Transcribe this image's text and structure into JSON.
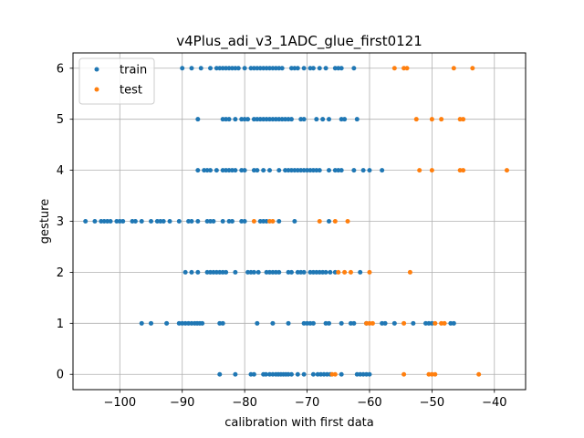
{
  "chart_data": {
    "type": "scatter",
    "title": "v4Plus_adi_v3_1ADC_glue_first0121",
    "xlabel": "calibration with first data",
    "ylabel": "gesture",
    "xlim": [
      -107.5,
      -35.0
    ],
    "ylim": [
      -0.3,
      6.3
    ],
    "xticks": [
      -100,
      -90,
      -80,
      -70,
      -60,
      -50,
      -40
    ],
    "xtick_labels": [
      "−100",
      "−90",
      "−80",
      "−70",
      "−60",
      "−50",
      "−40"
    ],
    "yticks": [
      0,
      1,
      2,
      3,
      4,
      5,
      6
    ],
    "ytick_labels": [
      "0",
      "1",
      "2",
      "3",
      "4",
      "5",
      "6"
    ],
    "grid": true,
    "legend_position": "top-left",
    "series": [
      {
        "name": "train",
        "color": "#1f77b4",
        "points": [
          [
            -84,
            0
          ],
          [
            -81.5,
            0
          ],
          [
            -79,
            0
          ],
          [
            -78.5,
            0
          ],
          [
            -77,
            0
          ],
          [
            -76.6,
            0
          ],
          [
            -76,
            0
          ],
          [
            -75.5,
            0
          ],
          [
            -75,
            0
          ],
          [
            -74.6,
            0
          ],
          [
            -74.2,
            0
          ],
          [
            -73.8,
            0
          ],
          [
            -73.4,
            0
          ],
          [
            -73,
            0
          ],
          [
            -72.5,
            0
          ],
          [
            -71.5,
            0
          ],
          [
            -70.5,
            0
          ],
          [
            -69,
            0
          ],
          [
            -68.3,
            0
          ],
          [
            -67.8,
            0
          ],
          [
            -67.3,
            0
          ],
          [
            -66.8,
            0
          ],
          [
            -66.3,
            0
          ],
          [
            -64.5,
            0
          ],
          [
            -62,
            0
          ],
          [
            -61.5,
            0
          ],
          [
            -61,
            0
          ],
          [
            -60.5,
            0
          ],
          [
            -60,
            0
          ],
          [
            -96.5,
            1
          ],
          [
            -95,
            1
          ],
          [
            -92.5,
            1
          ],
          [
            -90.5,
            1
          ],
          [
            -90,
            1
          ],
          [
            -89.5,
            1
          ],
          [
            -89,
            1
          ],
          [
            -88.5,
            1
          ],
          [
            -88,
            1
          ],
          [
            -87.6,
            1
          ],
          [
            -87.2,
            1
          ],
          [
            -86.8,
            1
          ],
          [
            -84,
            1
          ],
          [
            -83.5,
            1
          ],
          [
            -78,
            1
          ],
          [
            -75.5,
            1
          ],
          [
            -73,
            1
          ],
          [
            -70.5,
            1
          ],
          [
            -70,
            1
          ],
          [
            -69.5,
            1
          ],
          [
            -69,
            1
          ],
          [
            -67,
            1
          ],
          [
            -66.5,
            1
          ],
          [
            -64.5,
            1
          ],
          [
            -63,
            1
          ],
          [
            -62.5,
            1
          ],
          [
            -60.5,
            1
          ],
          [
            -58,
            1
          ],
          [
            -57.5,
            1
          ],
          [
            -56,
            1
          ],
          [
            -53,
            1
          ],
          [
            -51,
            1
          ],
          [
            -50.5,
            1
          ],
          [
            -50,
            1
          ],
          [
            -47,
            1
          ],
          [
            -46.5,
            1
          ],
          [
            -89.5,
            2
          ],
          [
            -88.5,
            2
          ],
          [
            -87.5,
            2
          ],
          [
            -86,
            2
          ],
          [
            -85.5,
            2
          ],
          [
            -85,
            2
          ],
          [
            -84.5,
            2
          ],
          [
            -84,
            2
          ],
          [
            -83.5,
            2
          ],
          [
            -83,
            2
          ],
          [
            -81.5,
            2
          ],
          [
            -79.5,
            2
          ],
          [
            -79,
            2
          ],
          [
            -78.5,
            2
          ],
          [
            -77.8,
            2
          ],
          [
            -76.5,
            2
          ],
          [
            -76,
            2
          ],
          [
            -75.5,
            2
          ],
          [
            -75,
            2
          ],
          [
            -74.5,
            2
          ],
          [
            -73,
            2
          ],
          [
            -72.5,
            2
          ],
          [
            -71.5,
            2
          ],
          [
            -71,
            2
          ],
          [
            -70.5,
            2
          ],
          [
            -69.5,
            2
          ],
          [
            -69,
            2
          ],
          [
            -68.5,
            2
          ],
          [
            -68,
            2
          ],
          [
            -67.5,
            2
          ],
          [
            -67,
            2
          ],
          [
            -66.3,
            2
          ],
          [
            -65.5,
            2
          ],
          [
            -61.5,
            2
          ],
          [
            -105.5,
            3
          ],
          [
            -104,
            3
          ],
          [
            -103,
            3
          ],
          [
            -102.5,
            3
          ],
          [
            -102,
            3
          ],
          [
            -101.5,
            3
          ],
          [
            -100.5,
            3
          ],
          [
            -100,
            3
          ],
          [
            -99.5,
            3
          ],
          [
            -98,
            3
          ],
          [
            -97.5,
            3
          ],
          [
            -96.5,
            3
          ],
          [
            -95,
            3
          ],
          [
            -94,
            3
          ],
          [
            -93.5,
            3
          ],
          [
            -93,
            3
          ],
          [
            -92,
            3
          ],
          [
            -90.5,
            3
          ],
          [
            -89,
            3
          ],
          [
            -88.5,
            3
          ],
          [
            -87.5,
            3
          ],
          [
            -86,
            3
          ],
          [
            -85.5,
            3
          ],
          [
            -85,
            3
          ],
          [
            -83.5,
            3
          ],
          [
            -82.5,
            3
          ],
          [
            -82,
            3
          ],
          [
            -80.5,
            3
          ],
          [
            -80,
            3
          ],
          [
            -77.5,
            3
          ],
          [
            -77,
            3
          ],
          [
            -76.5,
            3
          ],
          [
            -74.5,
            3
          ],
          [
            -72,
            3
          ],
          [
            -66.5,
            3
          ],
          [
            -87.5,
            4
          ],
          [
            -86.5,
            4
          ],
          [
            -86,
            4
          ],
          [
            -85.5,
            4
          ],
          [
            -84.5,
            4
          ],
          [
            -83.5,
            4
          ],
          [
            -83,
            4
          ],
          [
            -82.5,
            4
          ],
          [
            -82,
            4
          ],
          [
            -81.5,
            4
          ],
          [
            -80.5,
            4
          ],
          [
            -80,
            4
          ],
          [
            -78.5,
            4
          ],
          [
            -78,
            4
          ],
          [
            -77,
            4
          ],
          [
            -76,
            4
          ],
          [
            -74.5,
            4
          ],
          [
            -73.5,
            4
          ],
          [
            -73,
            4
          ],
          [
            -72.5,
            4
          ],
          [
            -72,
            4
          ],
          [
            -71.5,
            4
          ],
          [
            -71,
            4
          ],
          [
            -70.5,
            4
          ],
          [
            -70,
            4
          ],
          [
            -69.5,
            4
          ],
          [
            -69,
            4
          ],
          [
            -68.5,
            4
          ],
          [
            -68,
            4
          ],
          [
            -66.5,
            4
          ],
          [
            -65.5,
            4
          ],
          [
            -65,
            4
          ],
          [
            -64.5,
            4
          ],
          [
            -62.5,
            4
          ],
          [
            -61,
            4
          ],
          [
            -60,
            4
          ],
          [
            -58,
            4
          ],
          [
            -87.5,
            5
          ],
          [
            -83.5,
            5
          ],
          [
            -83,
            5
          ],
          [
            -82.5,
            5
          ],
          [
            -81.5,
            5
          ],
          [
            -80.5,
            5
          ],
          [
            -80,
            5
          ],
          [
            -79.5,
            5
          ],
          [
            -78.5,
            5
          ],
          [
            -78,
            5
          ],
          [
            -77.5,
            5
          ],
          [
            -77,
            5
          ],
          [
            -76.5,
            5
          ],
          [
            -76,
            5
          ],
          [
            -75.5,
            5
          ],
          [
            -75,
            5
          ],
          [
            -74.5,
            5
          ],
          [
            -74,
            5
          ],
          [
            -73.5,
            5
          ],
          [
            -73,
            5
          ],
          [
            -72.5,
            5
          ],
          [
            -71,
            5
          ],
          [
            -70.5,
            5
          ],
          [
            -68.5,
            5
          ],
          [
            -67.5,
            5
          ],
          [
            -66.5,
            5
          ],
          [
            -64.5,
            5
          ],
          [
            -64,
            5
          ],
          [
            -62,
            5
          ],
          [
            -90,
            6
          ],
          [
            -88.5,
            6
          ],
          [
            -87,
            6
          ],
          [
            -85.5,
            6
          ],
          [
            -84.5,
            6
          ],
          [
            -84,
            6
          ],
          [
            -83.5,
            6
          ],
          [
            -83,
            6
          ],
          [
            -82.5,
            6
          ],
          [
            -82,
            6
          ],
          [
            -81.5,
            6
          ],
          [
            -81,
            6
          ],
          [
            -80,
            6
          ],
          [
            -79,
            6
          ],
          [
            -78.5,
            6
          ],
          [
            -78,
            6
          ],
          [
            -77.5,
            6
          ],
          [
            -77,
            6
          ],
          [
            -76.5,
            6
          ],
          [
            -76,
            6
          ],
          [
            -75.5,
            6
          ],
          [
            -75,
            6
          ],
          [
            -74.5,
            6
          ],
          [
            -74,
            6
          ],
          [
            -72.5,
            6
          ],
          [
            -72,
            6
          ],
          [
            -71.5,
            6
          ],
          [
            -70.5,
            6
          ],
          [
            -69.5,
            6
          ],
          [
            -69,
            6
          ],
          [
            -68,
            6
          ],
          [
            -67,
            6
          ],
          [
            -65.5,
            6
          ],
          [
            -65,
            6
          ],
          [
            -64.5,
            6
          ],
          [
            -62.5,
            6
          ]
        ]
      },
      {
        "name": "test",
        "color": "#ff7f0e",
        "points": [
          [
            -66,
            0
          ],
          [
            -65.5,
            0
          ],
          [
            -54.5,
            0
          ],
          [
            -50.5,
            0
          ],
          [
            -50,
            0
          ],
          [
            -49.5,
            0
          ],
          [
            -42.5,
            0
          ],
          [
            -60.5,
            1
          ],
          [
            -60,
            1
          ],
          [
            -59.5,
            1
          ],
          [
            -54.5,
            1
          ],
          [
            -49.5,
            1
          ],
          [
            -48.5,
            1
          ],
          [
            -48,
            1
          ],
          [
            -65,
            2
          ],
          [
            -64,
            2
          ],
          [
            -63,
            2
          ],
          [
            -60,
            2
          ],
          [
            -53.5,
            2
          ],
          [
            -78.5,
            3
          ],
          [
            -76,
            3
          ],
          [
            -75.5,
            3
          ],
          [
            -68,
            3
          ],
          [
            -65.5,
            3
          ],
          [
            -63.5,
            3
          ],
          [
            -52,
            4
          ],
          [
            -50,
            4
          ],
          [
            -45.5,
            4
          ],
          [
            -45,
            4
          ],
          [
            -38,
            4
          ],
          [
            -52.5,
            5
          ],
          [
            -50,
            5
          ],
          [
            -48.5,
            5
          ],
          [
            -45.5,
            5
          ],
          [
            -45,
            5
          ],
          [
            -56,
            6
          ],
          [
            -54.5,
            6
          ],
          [
            -54,
            6
          ],
          [
            -46.5,
            6
          ],
          [
            -43.5,
            6
          ]
        ]
      }
    ]
  }
}
